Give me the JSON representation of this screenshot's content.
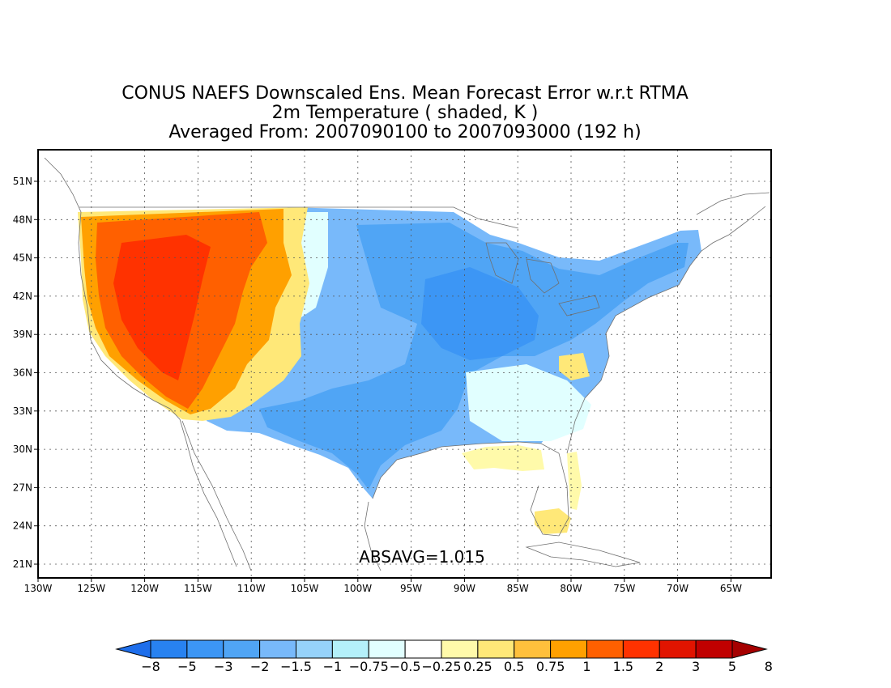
{
  "title": {
    "line1": "CONUS NAEFS Downscaled Ens. Mean Forecast Error w.r.t RTMA",
    "line2": "2m Temperature ( shaded, K )",
    "line3": "Averaged From: 2007090100 to 2007093000 (192 h)"
  },
  "annotation": "ABSAVG=1.015",
  "axes": {
    "lon_ticks": [
      "130W",
      "125W",
      "120W",
      "115W",
      "110W",
      "105W",
      "100W",
      "95W",
      "90W",
      "85W",
      "80W",
      "75W",
      "70W",
      "65W"
    ],
    "lat_ticks": [
      "51N",
      "48N",
      "45N",
      "42N",
      "39N",
      "36N",
      "33N",
      "30N",
      "27N",
      "24N",
      "21N"
    ],
    "grid": true
  },
  "colorbar": {
    "labels": [
      "−8",
      "−5",
      "−3",
      "−2",
      "−1.5",
      "−1",
      "−0.75",
      "−0.5",
      "−0.25",
      "0.25",
      "0.5",
      "0.75",
      "1",
      "1.5",
      "2",
      "3",
      "5",
      "8"
    ],
    "colors": [
      "#1e6eeb",
      "#2882f0",
      "#3c96f5",
      "#50a5f5",
      "#78b9fa",
      "#96d2fa",
      "#b4f0fa",
      "#e1ffff",
      "#ffffff",
      "#fffaaa",
      "#ffe878",
      "#ffc03c",
      "#ffa000",
      "#ff6000",
      "#ff3200",
      "#e11400",
      "#c00000",
      "#a50000"
    ]
  },
  "map": {
    "region": "Contiguous United States",
    "pattern": "Warm (positive) errors over the western US; cool (negative) errors over the central and eastern US; slight warm errors along the Gulf coast and Florida"
  }
}
